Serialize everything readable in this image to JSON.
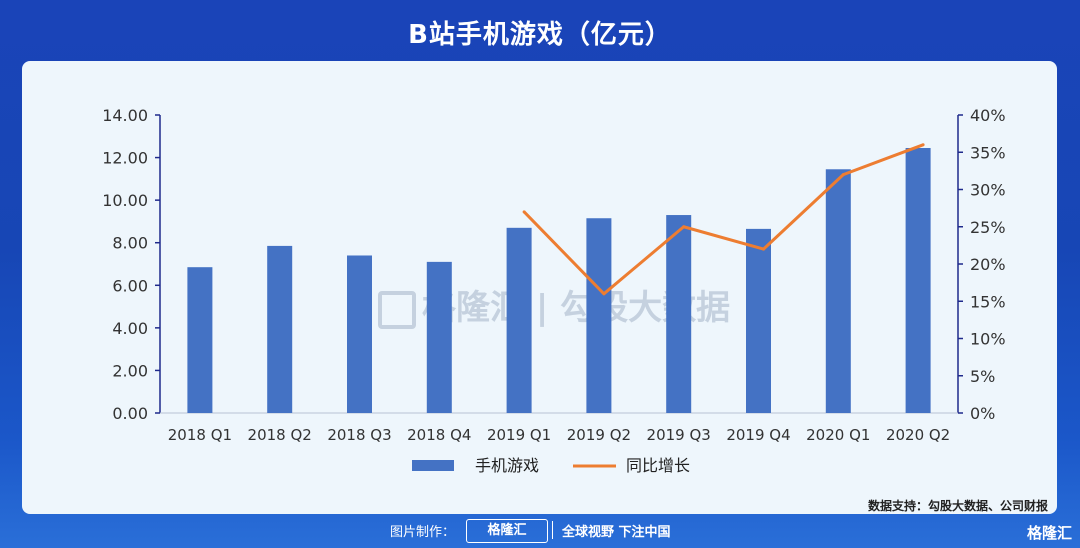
{
  "title": "B站手机游戏（亿元）",
  "watermark": "格隆汇 | 勾股大数据",
  "source": "数据支持：勾股大数据、公司财报",
  "footer": {
    "made_label": "图片制作：",
    "brand": "格隆汇",
    "slogan": "全球视野 下注中国"
  },
  "corner_logo": "格隆汇",
  "colors": {
    "bar": "#4472c4",
    "line": "#ed7d31",
    "axis": "#1f2a8c",
    "title_bg": "#1a44b8"
  },
  "chart_data": {
    "type": "bar",
    "categories": [
      "2018 Q1",
      "2018 Q2",
      "2018 Q3",
      "2018 Q4",
      "2019 Q1",
      "2019 Q2",
      "2019 Q3",
      "2019 Q4",
      "2020 Q1",
      "2020 Q2"
    ],
    "series": [
      {
        "name": "手机游戏",
        "type": "bar",
        "axis": "left",
        "values": [
          6.85,
          7.85,
          7.4,
          7.1,
          8.7,
          9.15,
          9.3,
          8.65,
          11.45,
          12.45
        ]
      },
      {
        "name": "同比增长",
        "type": "line",
        "axis": "right",
        "values": [
          null,
          null,
          null,
          null,
          0.27,
          0.16,
          0.25,
          0.22,
          0.32,
          0.36
        ]
      }
    ],
    "y_left": {
      "ylim": [
        0,
        14
      ],
      "ticks": [
        "0.00",
        "2.00",
        "4.00",
        "6.00",
        "8.00",
        "10.00",
        "12.00",
        "14.00"
      ]
    },
    "y_right": {
      "ylim": [
        0,
        0.4
      ],
      "ticks": [
        "0%",
        "5%",
        "10%",
        "15%",
        "20%",
        "25%",
        "30%",
        "35%",
        "40%"
      ]
    },
    "legend_position": "bottom-center",
    "grid": false
  }
}
